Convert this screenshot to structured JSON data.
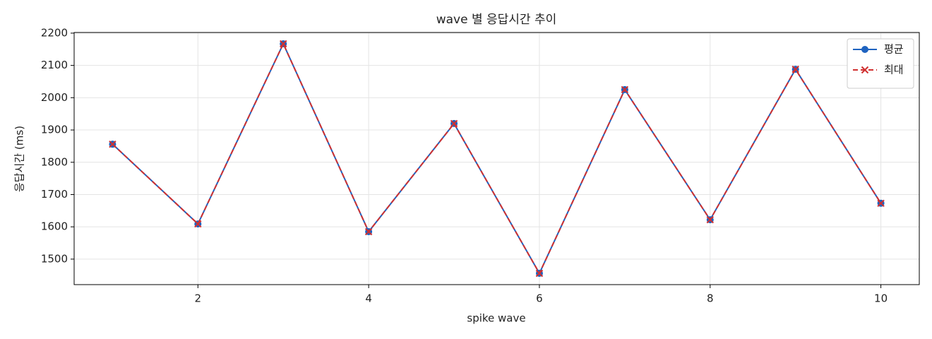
{
  "chart_data": {
    "type": "line",
    "title": "wave 별 응답시간 추이",
    "x_label": "spike wave",
    "y_label": "응답시간 (ms)",
    "x": [
      1,
      2,
      3,
      4,
      5,
      6,
      7,
      8,
      9,
      10
    ],
    "series": [
      {
        "name": "평균",
        "color": "#1f63c0",
        "marker": "circle",
        "linestyle": "solid",
        "values": [
          1856,
          1609,
          2167,
          1585,
          1920,
          1456,
          2025,
          1622,
          2088,
          1673
        ]
      },
      {
        "name": "최대",
        "color": "#d03030",
        "marker": "cross",
        "linestyle": "dashed",
        "values": [
          1856,
          1609,
          2167,
          1585,
          1920,
          1456,
          2025,
          1622,
          2088,
          1673
        ]
      }
    ],
    "xlim": [
      0.55,
      10.45
    ],
    "xticks": [
      2,
      4,
      6,
      8,
      10
    ],
    "ylim": [
      1421,
      2202
    ],
    "yticks": [
      1500,
      1600,
      1700,
      1800,
      1900,
      2000,
      2100,
      2200
    ],
    "grid": true,
    "legend_loc": "upper right"
  }
}
